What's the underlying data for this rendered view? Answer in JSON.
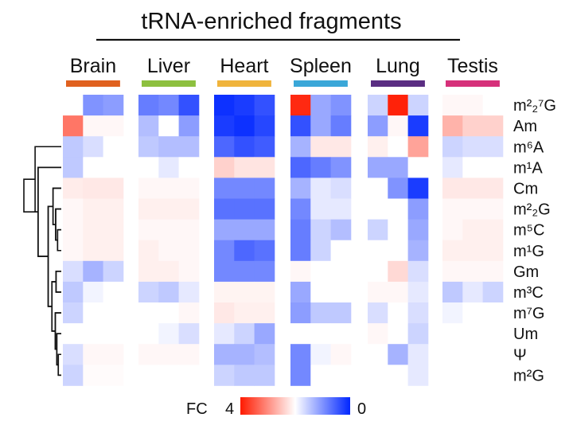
{
  "chart_data": {
    "type": "heatmap",
    "title": "tRNA-enriched fragments",
    "groups": [
      {
        "name": "Brain",
        "color": "#e0611f"
      },
      {
        "name": "Liver",
        "color": "#8dc03f"
      },
      {
        "name": "Heart",
        "color": "#f0b43c"
      },
      {
        "name": "Spleen",
        "color": "#3aa7d8"
      },
      {
        "name": "Lung",
        "color": "#5a2d82"
      },
      {
        "name": "Testis",
        "color": "#d6307a"
      }
    ],
    "replicates_per_group": 3,
    "rows": [
      {
        "label": "m²₂⁷G",
        "values": [
          1.0,
          0.5,
          0.55,
          0.4,
          0.45,
          0.2,
          0.05,
          0.1,
          0.2,
          3.8,
          0.6,
          0.5,
          0.8,
          3.9,
          0.8,
          1.1,
          1.1,
          1.0
        ]
      },
      {
        "label": "Am",
        "values": [
          2.8,
          1.1,
          1.1,
          0.7,
          1.0,
          0.55,
          0.1,
          0.05,
          0.15,
          0.2,
          0.6,
          0.4,
          0.55,
          1.1,
          0.1,
          2.0,
          1.6,
          1.6
        ]
      },
      {
        "label": "m⁶A",
        "values": [
          0.75,
          0.85,
          1.0,
          0.75,
          0.7,
          0.7,
          0.3,
          0.2,
          0.25,
          0.65,
          1.3,
          1.3,
          1.2,
          1.0,
          2.2,
          0.8,
          0.85,
          0.85
        ]
      },
      {
        "label": "m¹A",
        "values": [
          0.75,
          1.0,
          1.0,
          1.0,
          0.9,
          1.0,
          1.6,
          1.35,
          1.35,
          0.3,
          0.4,
          0.5,
          0.6,
          0.6,
          1.0,
          0.9,
          1.0,
          1.0
        ]
      },
      {
        "label": "Cm",
        "values": [
          1.25,
          1.3,
          1.3,
          1.1,
          1.1,
          1.1,
          0.45,
          0.45,
          0.45,
          0.65,
          0.9,
          0.85,
          1.0,
          0.5,
          0.1,
          1.3,
          1.3,
          1.3
        ]
      },
      {
        "label": "m²₂G",
        "values": [
          1.1,
          1.2,
          1.2,
          1.2,
          1.2,
          1.2,
          0.35,
          0.35,
          0.35,
          0.45,
          0.9,
          0.9,
          1.0,
          1.0,
          0.55,
          1.1,
          1.1,
          1.1
        ]
      },
      {
        "label": "m⁵C",
        "values": [
          1.1,
          1.2,
          1.2,
          1.1,
          1.1,
          1.1,
          0.6,
          0.6,
          0.6,
          0.4,
          0.8,
          0.7,
          0.8,
          1.0,
          0.6,
          1.1,
          1.2,
          1.2
        ]
      },
      {
        "label": "m¹G",
        "values": [
          1.1,
          1.2,
          1.2,
          1.2,
          1.1,
          1.1,
          0.45,
          0.3,
          0.35,
          0.4,
          0.8,
          1.0,
          1.0,
          1.0,
          0.65,
          1.2,
          1.2,
          1.2
        ]
      },
      {
        "label": "Gm",
        "values": [
          0.85,
          0.65,
          0.8,
          1.2,
          1.2,
          1.1,
          0.45,
          0.45,
          0.45,
          1.1,
          1.0,
          1.0,
          1.0,
          1.5,
          0.85,
          1.1,
          1.1,
          1.1
        ]
      },
      {
        "label": "m³C",
        "values": [
          0.75,
          0.95,
          1.0,
          0.8,
          0.75,
          0.9,
          1.15,
          1.15,
          1.15,
          0.6,
          1.0,
          1.0,
          1.1,
          1.1,
          0.9,
          0.75,
          0.9,
          0.8
        ]
      },
      {
        "label": "m⁷G",
        "values": [
          0.8,
          1.0,
          1.0,
          1.0,
          1.0,
          1.1,
          1.3,
          1.2,
          1.2,
          0.55,
          0.75,
          0.75,
          0.85,
          1.0,
          0.85,
          0.95,
          1.0,
          1.0
        ]
      },
      {
        "label": "Um",
        "values": [
          1.0,
          1.0,
          1.0,
          1.0,
          0.95,
          0.85,
          0.9,
          0.8,
          0.6,
          1.0,
          1.0,
          1.0,
          1.1,
          1.0,
          0.8,
          1.0,
          1.0,
          1.0
        ]
      },
      {
        "label": "Ψ",
        "values": [
          0.85,
          1.1,
          1.1,
          1.1,
          1.1,
          1.1,
          0.65,
          0.65,
          0.7,
          0.45,
          0.95,
          1.1,
          1.0,
          0.65,
          0.9,
          1.0,
          1.0,
          1.0
        ]
      },
      {
        "label": "m²G",
        "values": [
          0.8,
          1.05,
          1.05,
          1.0,
          1.0,
          1.0,
          0.8,
          0.75,
          0.75,
          0.45,
          1.0,
          1.0,
          1.0,
          1.0,
          0.9,
          1.0,
          1.0,
          1.0
        ]
      }
    ],
    "dendrogram": [
      {
        "height": 1.0,
        "left": {
          "cluster": 3
        },
        "right": {
          "cluster": 2
        }
      },
      {
        "height": 0.42,
        "left": {
          "leaf": 0
        },
        "right": {
          "leaf": 1
        }
      },
      {
        "height": 0.7,
        "left": {
          "leaf": 2
        },
        "right": {
          "cluster": 3
        }
      },
      {
        "height": 0.62,
        "left": {
          "leaf": 3
        },
        "right": {
          "cluster": 4
        }
      },
      {
        "height": 0.35,
        "left": {
          "cluster": 5
        },
        "right": {
          "cluster": 6
        }
      },
      {
        "height": 0.22,
        "left": {
          "leaf": 4
        },
        "right": {
          "cluster": 7
        }
      },
      {
        "height": 0.25,
        "left": {
          "cluster": 9
        },
        "right": {
          "cluster": 10
        }
      },
      {
        "height": 0.15,
        "left": {
          "leaf": 5
        },
        "right": {
          "cluster": 8
        }
      },
      {
        "height": 0.1,
        "left": {
          "leaf": 6
        },
        "right": {
          "leaf": 7
        }
      },
      {
        "height": 0.14,
        "left": {
          "leaf": 8
        },
        "right": {
          "leaf": 9
        }
      },
      {
        "height": 0.16,
        "left": {
          "leaf": 10
        },
        "right": {
          "cluster": 11
        }
      },
      {
        "height": 0.12,
        "left": {
          "leaf": 11
        },
        "right": {
          "cluster": 12
        }
      },
      {
        "height": 0.08,
        "left": {
          "leaf": 12
        },
        "right": {
          "leaf": 13
        }
      }
    ],
    "legend": {
      "label": "FC",
      "max_label": "4",
      "min_label": "0",
      "max": 4,
      "min": 0,
      "high_color": "#ff1a00",
      "mid_color": "#ffffff",
      "low_color": "#0026ff"
    }
  }
}
